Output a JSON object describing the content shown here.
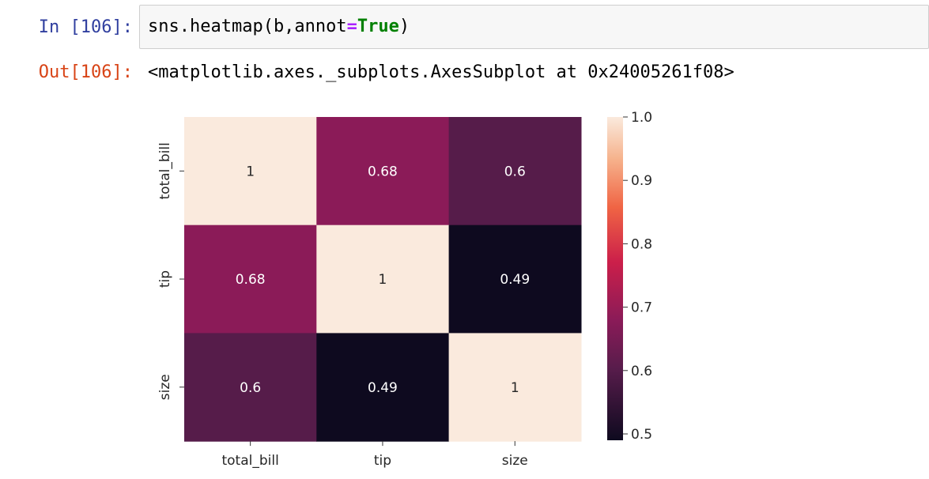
{
  "notebook": {
    "input_prompt": "In [106]:",
    "code": {
      "before_op": "sns.heatmap(b,annot",
      "op": "=",
      "keyword": "True",
      "after": ")"
    },
    "output_prompt": "Out[106]:",
    "output_text": "<matplotlib.axes._subplots.AxesSubplot at 0x24005261f08>"
  },
  "chart_data": {
    "type": "heatmap",
    "rows": [
      "total_bill",
      "tip",
      "size"
    ],
    "columns": [
      "total_bill",
      "tip",
      "size"
    ],
    "values": [
      [
        1,
        0.68,
        0.6
      ],
      [
        0.68,
        1,
        0.49
      ],
      [
        0.6,
        0.49,
        1
      ]
    ],
    "annotations": [
      [
        "1",
        "0.68",
        "0.6"
      ],
      [
        "0.68",
        "1",
        "0.49"
      ],
      [
        "0.6",
        "0.49",
        "1"
      ]
    ],
    "colorbar": {
      "range": [
        0.49,
        1.0
      ],
      "ticks": [
        0.5,
        0.6,
        0.7,
        0.8,
        0.9,
        1.0
      ],
      "tick_labels": [
        "0.5",
        "0.6",
        "0.7",
        "0.8",
        "0.9",
        "1.0"
      ]
    },
    "colormap": "rocket",
    "colors": {
      "0.49": "#0e0a1f",
      "0.6": "#571c4b",
      "0.68": "#8a1b58",
      "1": "#faeadd"
    },
    "title": "",
    "xlabel": "",
    "ylabel": "",
    "grid": false
  }
}
